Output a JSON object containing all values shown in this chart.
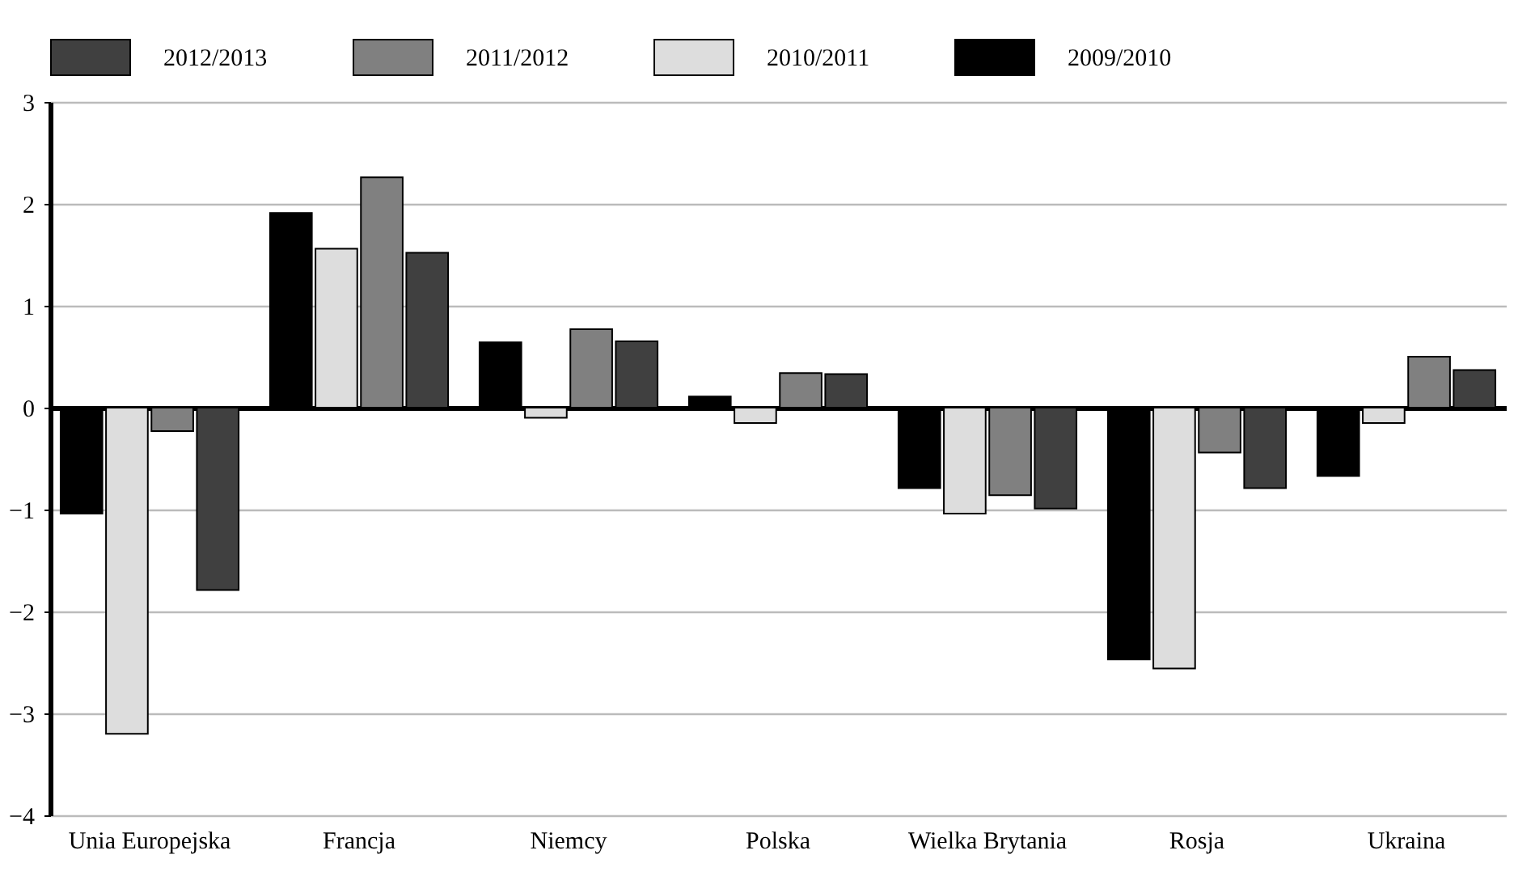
{
  "chart_data": {
    "type": "bar",
    "categories": [
      "Unia Europejska",
      "Francja",
      "Niemcy",
      "Polska",
      "Wielka Brytania",
      "Rosja",
      "Ukraina"
    ],
    "series": [
      {
        "name": "2009/2010",
        "color": "#000000",
        "values": [
          -1.04,
          1.91,
          0.64,
          0.11,
          -0.79,
          -2.47,
          -0.67
        ]
      },
      {
        "name": "2010/2011",
        "color": "#dddddd",
        "values": [
          -3.2,
          1.56,
          -0.1,
          -0.15,
          -1.04,
          -2.56,
          -0.15
        ]
      },
      {
        "name": "2011/2012",
        "color": "#808080",
        "values": [
          -0.23,
          2.26,
          0.77,
          0.34,
          -0.86,
          -0.44,
          0.5
        ]
      },
      {
        "name": "2012/2013",
        "color": "#404040",
        "values": [
          -1.79,
          1.52,
          0.65,
          0.33,
          -0.99,
          -0.79,
          0.37
        ]
      }
    ],
    "ylim": [
      -4,
      3
    ],
    "yticks": [
      -4,
      -3,
      -2,
      -1,
      0,
      1,
      2,
      3
    ],
    "grid": "y",
    "legend": "top"
  }
}
